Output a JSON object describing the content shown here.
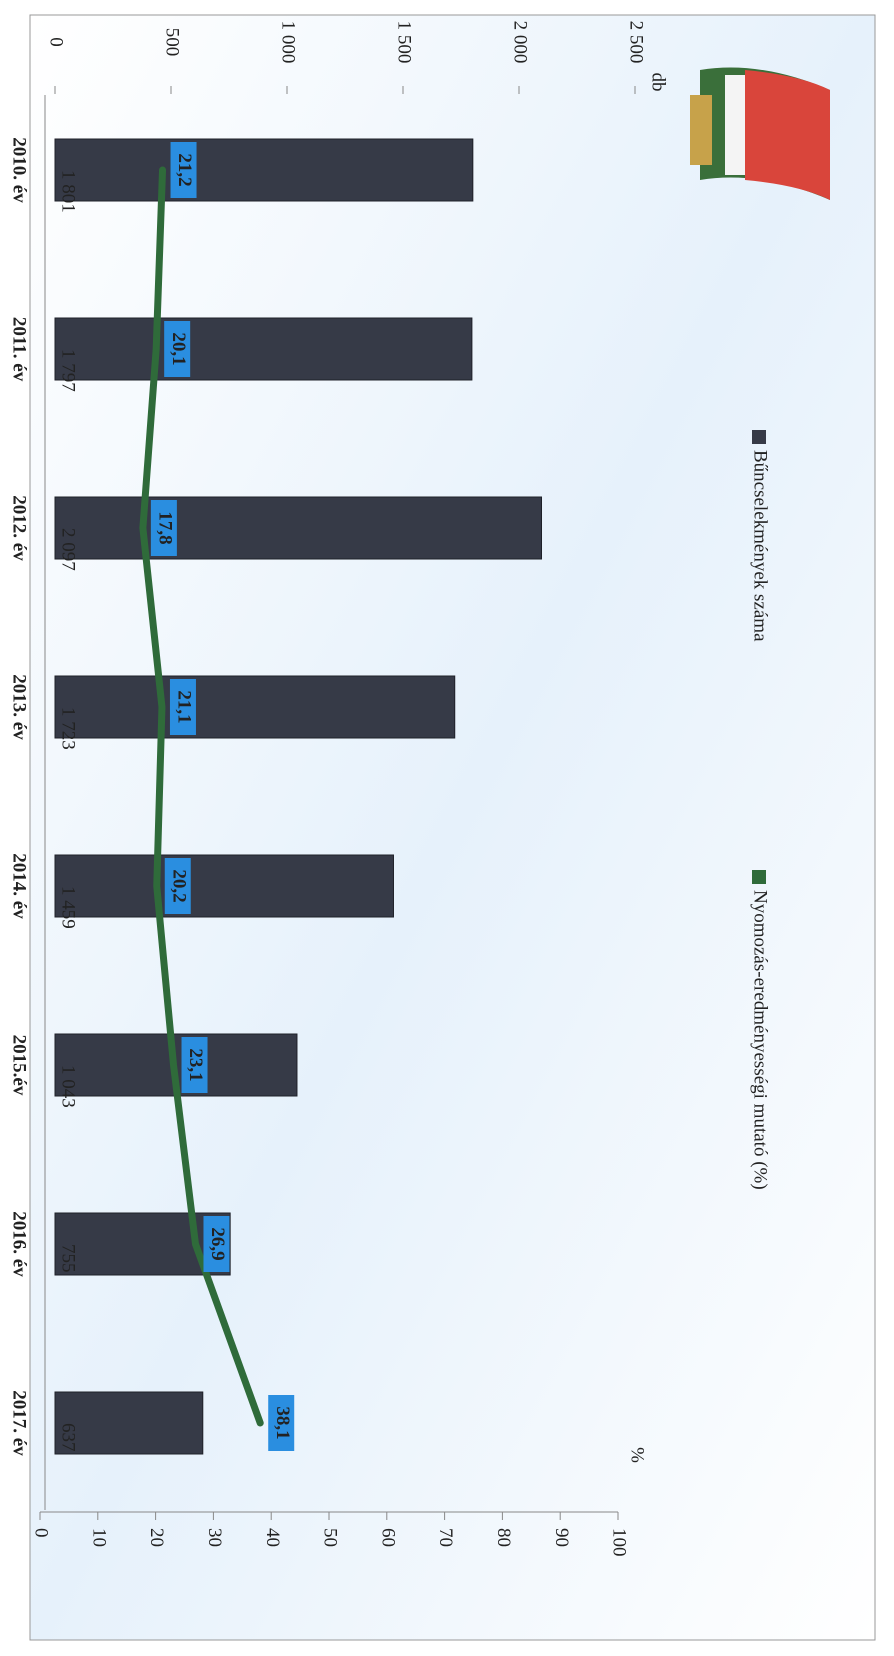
{
  "chart_data": {
    "type": "bar",
    "y_unit_label": "db",
    "y2_unit_label": "%",
    "categories": [
      "2010. év",
      "2011. év",
      "2012. év",
      "2013. év",
      "2014. év",
      "2015.év",
      "2016. év",
      "2017. év"
    ],
    "series": [
      {
        "name": "Bűncselekmények száma",
        "color": "#363a47",
        "type": "bar",
        "values": [
          1801,
          1797,
          2097,
          1723,
          1459,
          1043,
          755,
          637
        ],
        "value_labels": [
          "1 801",
          "1 797",
          "2 097",
          "1 723",
          "1 459",
          "1 043",
          "755",
          "637"
        ]
      },
      {
        "name": "Nyomozás-eredményességi mutató (%)",
        "color": "#2f6b3a",
        "type": "line",
        "axis": "y2",
        "values": [
          21.2,
          20.1,
          17.8,
          21.1,
          20.2,
          23.1,
          26.9,
          38.1
        ],
        "value_labels": [
          "21,2",
          "20,1",
          "17,8",
          "21,1",
          "20,2",
          "23,1",
          "26,9",
          "38,1"
        ]
      }
    ],
    "ylim": [
      0,
      2500
    ],
    "yticks": [
      0,
      500,
      {
        "value": 1000,
        "label": "1 000"
      },
      {
        "value": 1500,
        "label": "1 500"
      },
      {
        "value": 2000,
        "label": "2 000"
      },
      {
        "value": 2500,
        "label": "2 500"
      }
    ],
    "y2lim": [
      0,
      100
    ],
    "y2ticks": [
      0,
      10,
      20,
      30,
      40,
      50,
      60,
      70,
      80,
      90,
      100
    ],
    "grid": false
  }
}
